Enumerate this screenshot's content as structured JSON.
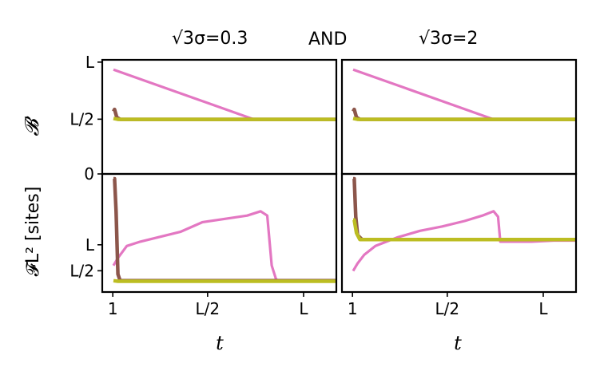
{
  "titles": {
    "left": "√3σ=0.3",
    "middle": "AND",
    "right": "√3σ=2"
  },
  "ylabels": {
    "top": "𝓑",
    "bottom": "𝓕L² [sites]"
  },
  "xlabel": "t",
  "colors": {
    "pink": "#e377c2",
    "brown": "#8c564b",
    "olive": "#bcbd22"
  },
  "chart_data": [
    {
      "type": "line",
      "panel": "top-left",
      "title": "√3σ=0.3",
      "xlabel": "",
      "ylabel": "𝓑",
      "xticks": [],
      "yticks": [
        "L",
        "L/2"
      ],
      "ylim": [
        0,
        1.05
      ],
      "xlim": [
        0,
        1.05
      ],
      "series": [
        {
          "color": "pink",
          "x": [
            0,
            0.63,
            1.0
          ],
          "y": [
            1.0,
            0.5,
            0.5
          ]
        },
        {
          "color": "brown",
          "x": [
            0,
            0.005,
            0.015,
            0.03,
            1.0
          ],
          "y": [
            0.58,
            0.6,
            0.52,
            0.5,
            0.5
          ]
        },
        {
          "color": "olive",
          "x": [
            0,
            0.02,
            1.0
          ],
          "y": [
            0.51,
            0.5,
            0.5
          ]
        }
      ]
    },
    {
      "type": "line",
      "panel": "top-right",
      "title": "√3σ=2",
      "xlabel": "",
      "ylabel": "",
      "xticks": [],
      "yticks": [],
      "ylim": [
        0,
        1.05
      ],
      "xlim": [
        0,
        1.05
      ],
      "series": [
        {
          "color": "pink",
          "x": [
            0,
            0.63,
            1.0
          ],
          "y": [
            1.0,
            0.5,
            0.5
          ]
        },
        {
          "color": "brown",
          "x": [
            0,
            0.005,
            0.015,
            0.03,
            1.0
          ],
          "y": [
            0.58,
            0.6,
            0.52,
            0.5,
            0.5
          ]
        },
        {
          "color": "olive",
          "x": [
            0,
            0.02,
            1.0
          ],
          "y": [
            0.51,
            0.5,
            0.5
          ]
        }
      ]
    },
    {
      "type": "line",
      "panel": "bottom-left",
      "xlabel": "t",
      "ylabel": "𝓕L² [sites]",
      "xticks": [
        "1",
        "L/2",
        "L"
      ],
      "yticks": [
        "0",
        "L",
        "L/2"
      ],
      "ylim": [
        0,
        1.0
      ],
      "xlim": [
        0,
        1.05
      ],
      "series": [
        {
          "color": "pink",
          "x": [
            0,
            0.02,
            0.06,
            0.12,
            0.2,
            0.3,
            0.4,
            0.5,
            0.6,
            0.66,
            0.69,
            0.71,
            0.73,
            0.75,
            1.0
          ],
          "y": [
            0.2,
            0.27,
            0.38,
            0.42,
            0.46,
            0.51,
            0.6,
            0.63,
            0.66,
            0.7,
            0.66,
            0.2,
            0.07,
            0.06,
            0.06
          ]
        },
        {
          "color": "brown",
          "x": [
            0,
            0.005,
            0.012,
            0.02,
            0.03,
            1.0
          ],
          "y": [
            1.0,
            1.0,
            0.7,
            0.12,
            0.06,
            0.06
          ]
        },
        {
          "color": "olive",
          "x": [
            0,
            0.02,
            1.0
          ],
          "y": [
            0.06,
            0.055,
            0.055
          ]
        }
      ]
    },
    {
      "type": "line",
      "panel": "bottom-right",
      "xlabel": "t",
      "ylabel": "",
      "xticks": [
        "1",
        "L/2",
        "L"
      ],
      "yticks": [],
      "ylim": [
        0,
        1.0
      ],
      "xlim": [
        0,
        1.05
      ],
      "series": [
        {
          "color": "pink",
          "x": [
            0,
            0.02,
            0.05,
            0.1,
            0.2,
            0.3,
            0.4,
            0.5,
            0.58,
            0.63,
            0.65,
            0.66,
            0.7,
            0.8,
            0.9,
            1.0
          ],
          "y": [
            0.15,
            0.22,
            0.3,
            0.38,
            0.46,
            0.52,
            0.56,
            0.61,
            0.66,
            0.7,
            0.65,
            0.42,
            0.42,
            0.42,
            0.43,
            0.43
          ]
        },
        {
          "color": "brown",
          "x": [
            0,
            0.005,
            0.012,
            0.02,
            0.04,
            1.0
          ],
          "y": [
            1.0,
            1.0,
            0.65,
            0.48,
            0.44,
            0.44
          ]
        },
        {
          "color": "olive",
          "x": [
            0,
            0.005,
            0.015,
            0.03,
            0.06,
            1.0
          ],
          "y": [
            0.62,
            0.62,
            0.5,
            0.44,
            0.44,
            0.44
          ]
        }
      ]
    }
  ]
}
